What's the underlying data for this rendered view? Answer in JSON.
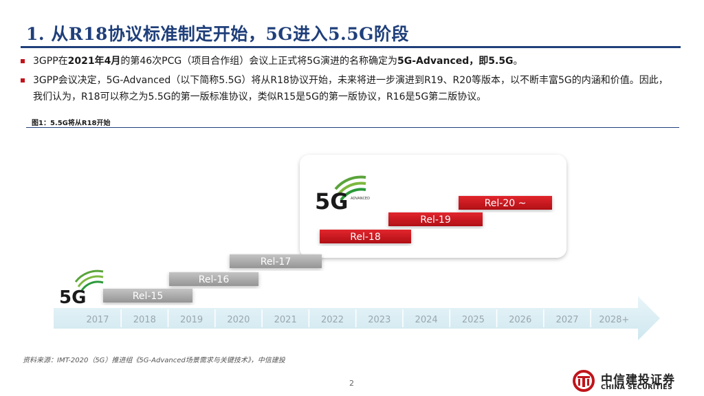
{
  "title": "1. 从R18协议标准制定开始，5G进入5.5G阶段",
  "bullets": [
    {
      "pre": "3GPP在",
      "bold1": "2021年4月",
      "mid": "的第46次PCG（项目合作组）会议上正式将5G演进的名称确定为",
      "bold2": "5G-Advanced，即5.5G",
      "post": "。"
    },
    {
      "text": "3GPP会议决定，5G-Advanced（以下简称5.5G）将从R18协议开始，未来将进一步演进到R19、R20等版本，以不断丰富5G的内涵和价值。因此，我们认为，R18可以称之为5.5G的第一版标准协议，类似R15是5G的第一版协议，R16是5G第二版协议。"
    }
  ],
  "figure_caption": "图1：5.5G将从R18开始",
  "timeline": {
    "years": [
      "2017",
      "2018",
      "2019",
      "2020",
      "2021",
      "2022",
      "2023",
      "2024",
      "2025",
      "2026",
      "2027",
      "2028+"
    ],
    "releases_grey": [
      "Rel-15",
      "Rel-16",
      "Rel-17"
    ],
    "releases_red": [
      "Rel-18",
      "Rel-19",
      "Rel-20 ~"
    ],
    "logo_5g_text": "5G",
    "logo_advanced_text": "5G",
    "logo_advanced_sub": "ADVANCED"
  },
  "colors": {
    "title_blue": "#1f3f7a",
    "bullet_red": "#c0141b",
    "rel_red": "#c8161d",
    "rel_grey": "#a8a8a8",
    "arrow_blue": "#d6ecf3",
    "logo_green": "#2a9a3a"
  },
  "source": "资料来源：IMT-2020（5G）推进组《5G-Advanced场景需求与关键技术》，中信建投",
  "page_number": "2",
  "company": {
    "name_cn": "中信建投证券",
    "name_en": "CHINA SECURITIES"
  }
}
